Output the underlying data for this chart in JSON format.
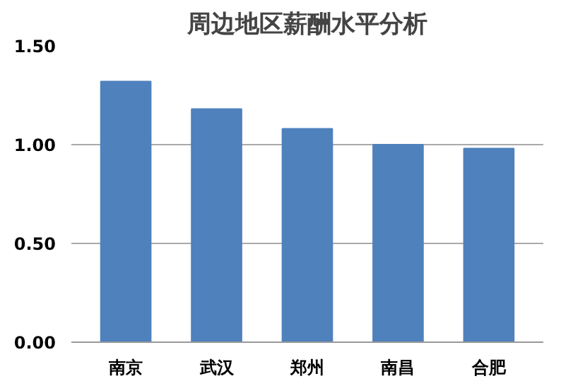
{
  "chart_data": {
    "type": "bar",
    "title": "周边地区薪酬水平分析",
    "categories": [
      "南京",
      "武汉",
      "郑州",
      "南昌",
      "合肥"
    ],
    "values": [
      1.32,
      1.18,
      1.08,
      1.0,
      0.98
    ],
    "color": "#4f81bd",
    "ylim": [
      0,
      1.5
    ],
    "yticks": [
      {
        "value": 0,
        "label": "0.00"
      },
      {
        "value": 0.5,
        "label": "0.50"
      },
      {
        "value": 1,
        "label": "1.00"
      },
      {
        "value": 1.5,
        "label": "1.50"
      }
    ],
    "grid": "y"
  }
}
